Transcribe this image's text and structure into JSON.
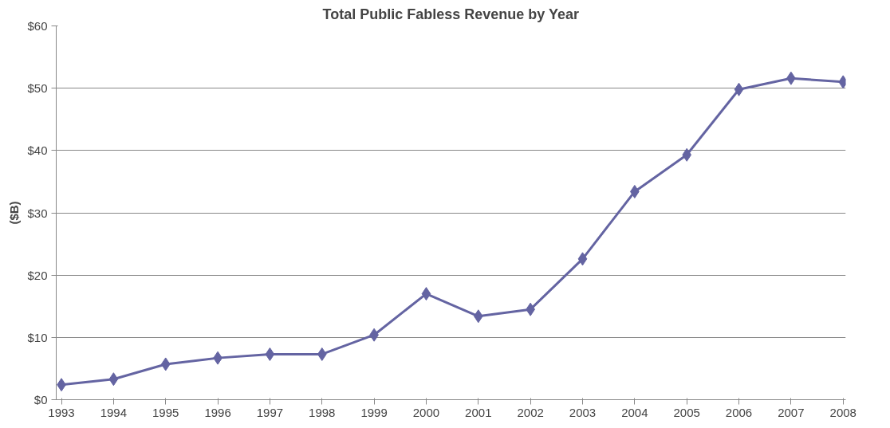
{
  "chart_data": {
    "type": "line",
    "title": "Total Public Fabless Revenue by Year",
    "ylabel": "($B)",
    "categories": [
      "1993",
      "1994",
      "1995",
      "1996",
      "1997",
      "1998",
      "1999",
      "2000",
      "2001",
      "2002",
      "2003",
      "2004",
      "2005",
      "2006",
      "2007",
      "2008"
    ],
    "series": [
      {
        "color": "#6464a2",
        "values": [
          2.4,
          3.3,
          5.7,
          6.7,
          7.3,
          7.3,
          10.4,
          17.0,
          13.4,
          14.5,
          22.6,
          33.4,
          39.3,
          49.8,
          51.6,
          51.0
        ]
      }
    ],
    "ylim": [
      0,
      60
    ],
    "yticks": [
      {
        "value": 0,
        "label": "$0"
      },
      {
        "value": 10,
        "label": "$10"
      },
      {
        "value": 20,
        "label": "$20"
      },
      {
        "value": 30,
        "label": "$30"
      },
      {
        "value": 40,
        "label": "$40"
      },
      {
        "value": 50,
        "label": "$50"
      },
      {
        "value": 60,
        "label": "$60"
      }
    ],
    "grid": "y",
    "marker": "diamond",
    "line_style": "solid"
  }
}
